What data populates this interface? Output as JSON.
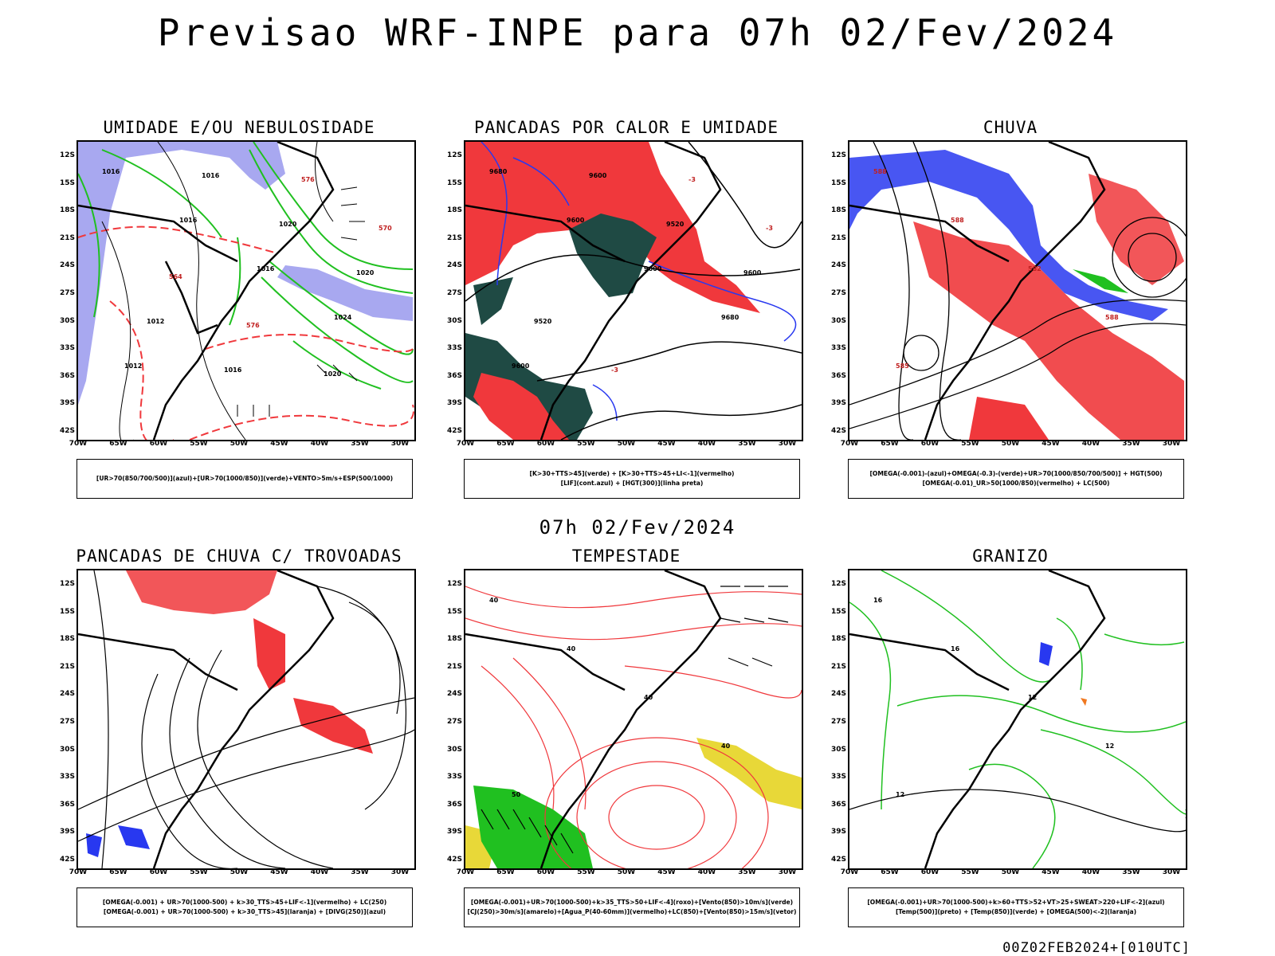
{
  "title": "Previsao WRF-INPE  para 07h 02/Fev/2024",
  "subtitle": "07h 02/Fev/2024",
  "footer": "00Z02FEB2024+[010UTC]",
  "axes": {
    "lat_labels": [
      "12S",
      "15S",
      "18S",
      "21S",
      "24S",
      "27S",
      "30S",
      "33S",
      "36S",
      "39S",
      "42S"
    ],
    "lon_labels": [
      "70W",
      "65W",
      "60W",
      "55W",
      "50W",
      "45W",
      "40W",
      "35W",
      "30W"
    ]
  },
  "colors": {
    "red": "#f0383c",
    "green": "#20c020",
    "blue": "#2838f0",
    "lavender": "#a8a8f0",
    "darkgreen": "#1f4a44",
    "yellow": "#e8d838",
    "orange": "#f07820",
    "purple": "#9040c0"
  },
  "panels": [
    {
      "id": "umidade",
      "title": "UMIDADE E/OU NEBULOSIDADE",
      "legend": [
        "[UR>70(850/700/500)](azul)+[UR>70(1000/850)](verde)+VENTO>5m/s+ESP(500/1000)"
      ],
      "contour_labels": [
        "1016",
        "1016",
        "1016",
        "1024",
        "1012",
        "1016",
        "1020",
        "1020",
        "1012",
        "1016",
        "576",
        "570",
        "564",
        "576",
        "1020"
      ]
    },
    {
      "id": "pancadas-calor",
      "title": "PANCADAS POR CALOR E UMIDADE",
      "legend": [
        "[K>30+TTS>45](verde) + [K>30+TTS>45+LI<-1](vermelho)",
        "[LIF](cont.azul) + [HGT(300)](linha preta)"
      ],
      "contour_labels": [
        "9680",
        "9600",
        "9600",
        "9680",
        "9600",
        "9600",
        "9520",
        "9600",
        "9520",
        "-3",
        "-3",
        "-3"
      ]
    },
    {
      "id": "chuva",
      "title": "CHUVA",
      "legend": [
        "[OMEGA(-0.001)-(azul)+OMEGA(-0.3)-(verde)+UR>70(1000/850/700/500)] + HGT(500)",
        "[OMEGA(-0.01)_UR>50(1000/850)(vermelho) + LC(500)"
      ],
      "contour_labels": [
        "588",
        "588",
        "582",
        "588",
        "585"
      ]
    },
    {
      "id": "pancadas-trovoadas",
      "title": "PANCADAS DE CHUVA C/ TROVOADAS",
      "legend": [
        "[OMEGA(-0.001) + UR>70(1000-500) + k>30_TTS>45+LIF<-1](vermelho) + LC(250)",
        "[OMEGA(-0.001) + UR>70(1000-500) + k>30_TTS>45](laranja) + [DIVG(250)](azul)"
      ],
      "contour_labels": []
    },
    {
      "id": "tempestade",
      "title": "TEMPESTADE",
      "legend": [
        "[OMEGA(-0.001)+UR>70(1000-500)+k>35_TTS>50+LIF<-4](roxo)+[Vento(850)>10m/s](verde)",
        "[CJ(250)>30m/s](amarelo)+[Agua_P(40-60mm)](vermelho)+LC(850)+[Vento(850)>15m/s](vetor)"
      ],
      "contour_labels": [
        "40",
        "40",
        "40",
        "40",
        "50"
      ]
    },
    {
      "id": "granizo",
      "title": "GRANIZO",
      "legend": [
        "[OMEGA(-0.001)+UR>70(1000-500)+k>60+TTS>52+VT>25+SWEAT>220+LIF<-2](azul)",
        "[Temp(500)](preto) + [Temp(850)](verde) + [OMEGA(500)<-2](laranja)"
      ],
      "contour_labels": [
        "16",
        "16",
        "12",
        "12",
        "12"
      ]
    }
  ]
}
